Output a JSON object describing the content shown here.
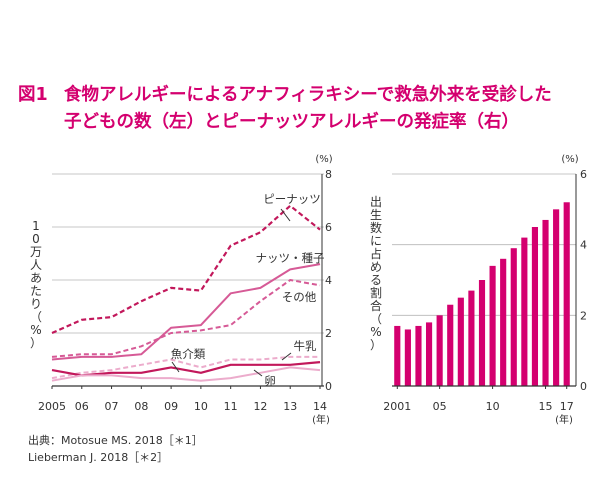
{
  "figure": {
    "label": "図1",
    "title_line1": "食物アレルギーによるアナフィラキシーで救急外来を受診した",
    "title_line2": "子どもの数（左）とピーナッツアレルギーの発症率（右）"
  },
  "sources": [
    "出典：Motosue MS. 2018［＊1］",
    "Lieberman J. 2018［＊2］"
  ],
  "colors": {
    "accent": "#d4006f",
    "dark": "#c2185b",
    "medium": "#d65a96",
    "light": "#ecaccc"
  },
  "chart_data": [
    {
      "type": "line",
      "ylabel": "10万人あたり（%）",
      "yunit": "(%)",
      "xunit": "(年)",
      "x": [
        2005,
        2006,
        2007,
        2008,
        2009,
        2010,
        2011,
        2012,
        2013,
        2014
      ],
      "xtick_labels": [
        "2005",
        "06",
        "07",
        "08",
        "09",
        "10",
        "11",
        "12",
        "13",
        "14"
      ],
      "ylim": [
        0,
        8
      ],
      "yticks": [
        0,
        2,
        4,
        6,
        8
      ],
      "series": [
        {
          "name": "ピーナッツ",
          "style": "dashed",
          "tone": "dark",
          "values": [
            2.0,
            2.5,
            2.6,
            3.2,
            3.7,
            3.6,
            5.3,
            5.8,
            6.8,
            5.9
          ]
        },
        {
          "name": "ナッツ・種子",
          "style": "solid",
          "tone": "medium",
          "values": [
            1.0,
            1.1,
            1.1,
            1.2,
            2.2,
            2.3,
            3.5,
            3.7,
            4.4,
            4.6
          ]
        },
        {
          "name": "その他",
          "style": "dashed",
          "tone": "medium",
          "values": [
            1.1,
            1.2,
            1.2,
            1.5,
            2.0,
            2.1,
            2.3,
            3.2,
            4.0,
            3.8
          ]
        },
        {
          "name": "牛乳",
          "style": "dashed",
          "tone": "light",
          "values": [
            0.3,
            0.5,
            0.6,
            0.8,
            1.0,
            0.7,
            1.0,
            1.0,
            1.1,
            1.1
          ]
        },
        {
          "name": "魚介類",
          "style": "solid",
          "tone": "dark",
          "values": [
            0.6,
            0.4,
            0.5,
            0.5,
            0.7,
            0.5,
            0.8,
            0.8,
            0.8,
            0.9
          ]
        },
        {
          "name": "卵",
          "style": "solid",
          "tone": "light",
          "values": [
            0.2,
            0.4,
            0.4,
            0.3,
            0.3,
            0.2,
            0.3,
            0.5,
            0.7,
            0.6
          ]
        }
      ]
    },
    {
      "type": "bar",
      "ylabel": "出生数に占める割合（%）",
      "yunit": "(%)",
      "xunit": "(年)",
      "categories": [
        2001,
        2002,
        2003,
        2004,
        2005,
        2006,
        2007,
        2008,
        2009,
        2010,
        2011,
        2012,
        2013,
        2014,
        2015,
        2016,
        2017
      ],
      "xtick_labels": [
        "2001",
        "05",
        "10",
        "15",
        "17"
      ],
      "xtick_years": [
        2001,
        2005,
        2010,
        2015,
        2017
      ],
      "values": [
        1.7,
        1.6,
        1.7,
        1.8,
        2.0,
        2.3,
        2.5,
        2.7,
        3.0,
        3.4,
        3.6,
        3.9,
        4.2,
        4.5,
        4.7,
        5.0,
        5.2
      ],
      "ylim": [
        0,
        6
      ],
      "yticks": [
        0,
        2,
        4,
        6
      ]
    }
  ]
}
